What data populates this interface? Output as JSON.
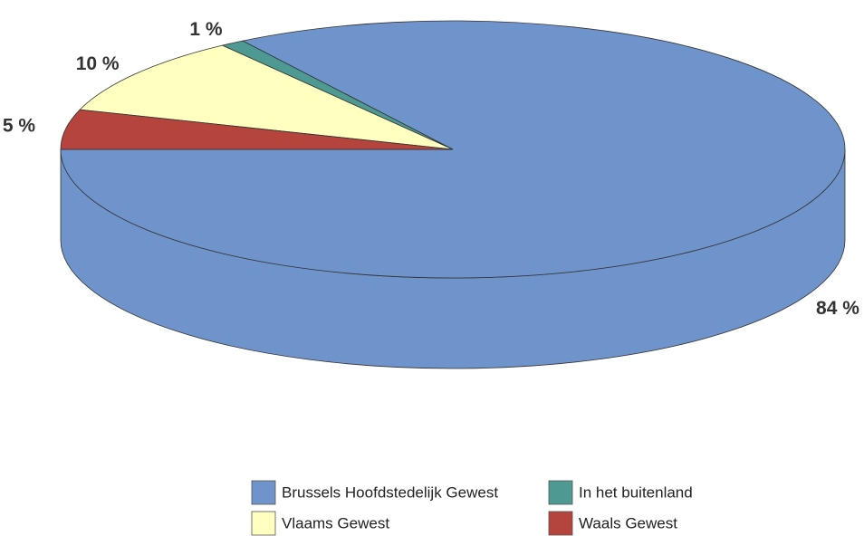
{
  "chart_data": {
    "type": "pie",
    "categories": [
      "Brussels Hoofdstedelijk Gewest",
      "In het buitenland",
      "Vlaams Gewest",
      "Waals Gewest"
    ],
    "values": [
      84,
      1,
      10,
      5
    ],
    "value_labels": [
      "84 %",
      "1 %",
      "10 %",
      "5 %"
    ],
    "colors": [
      "#6f94cc",
      "#4e9a93",
      "#ffffc0",
      "#b5443c"
    ],
    "legend": "bottom"
  }
}
